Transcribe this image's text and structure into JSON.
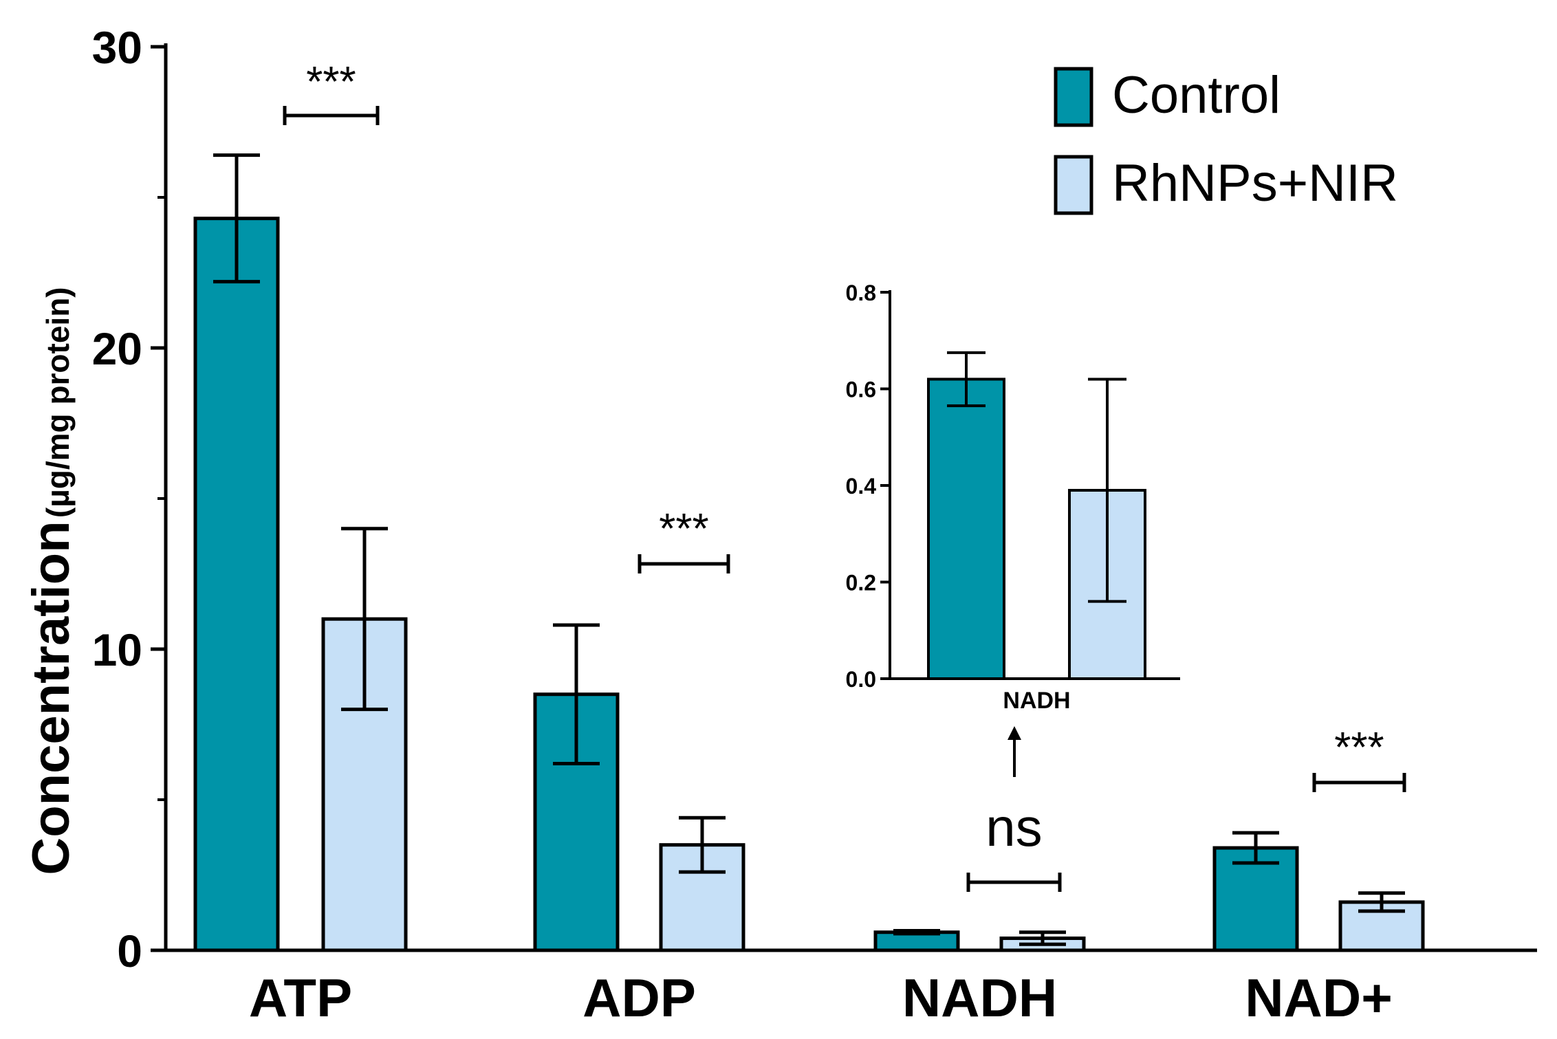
{
  "chart_data": [
    {
      "type": "bar",
      "ylabel": "Concentration",
      "ylabel_unit": "(µg/mg protein)",
      "ylim": [
        0,
        30
      ],
      "yticks": [
        "0",
        "10",
        "20",
        "30"
      ],
      "categories": [
        "ATP",
        "ADP",
        "NADH",
        "NAD+"
      ],
      "series": [
        {
          "name": "Control",
          "color": "#0094a8",
          "values": [
            24.3,
            8.5,
            0.6,
            3.4
          ],
          "errors": [
            2.1,
            2.3,
            0.05,
            0.5
          ]
        },
        {
          "name": "RhNPs+NIR",
          "color": "#c6e0f7",
          "values": [
            11.0,
            3.5,
            0.4,
            1.6
          ],
          "errors": [
            3.0,
            0.9,
            0.2,
            0.3
          ]
        }
      ],
      "significance": [
        "***",
        "***",
        "ns",
        "***"
      ],
      "legend_position": "top-right"
    },
    {
      "type": "bar",
      "inset": true,
      "categories": [
        "NADH"
      ],
      "ylim": [
        0,
        0.8
      ],
      "yticks": [
        "0.0",
        "0.2",
        "0.4",
        "0.6",
        "0.8"
      ],
      "series": [
        {
          "name": "Control",
          "color": "#0094a8",
          "values": [
            0.62
          ],
          "errors": [
            0.055
          ]
        },
        {
          "name": "RhNPs+NIR",
          "color": "#c6e0f7",
          "values": [
            0.39
          ],
          "errors": [
            0.23
          ]
        }
      ]
    }
  ]
}
